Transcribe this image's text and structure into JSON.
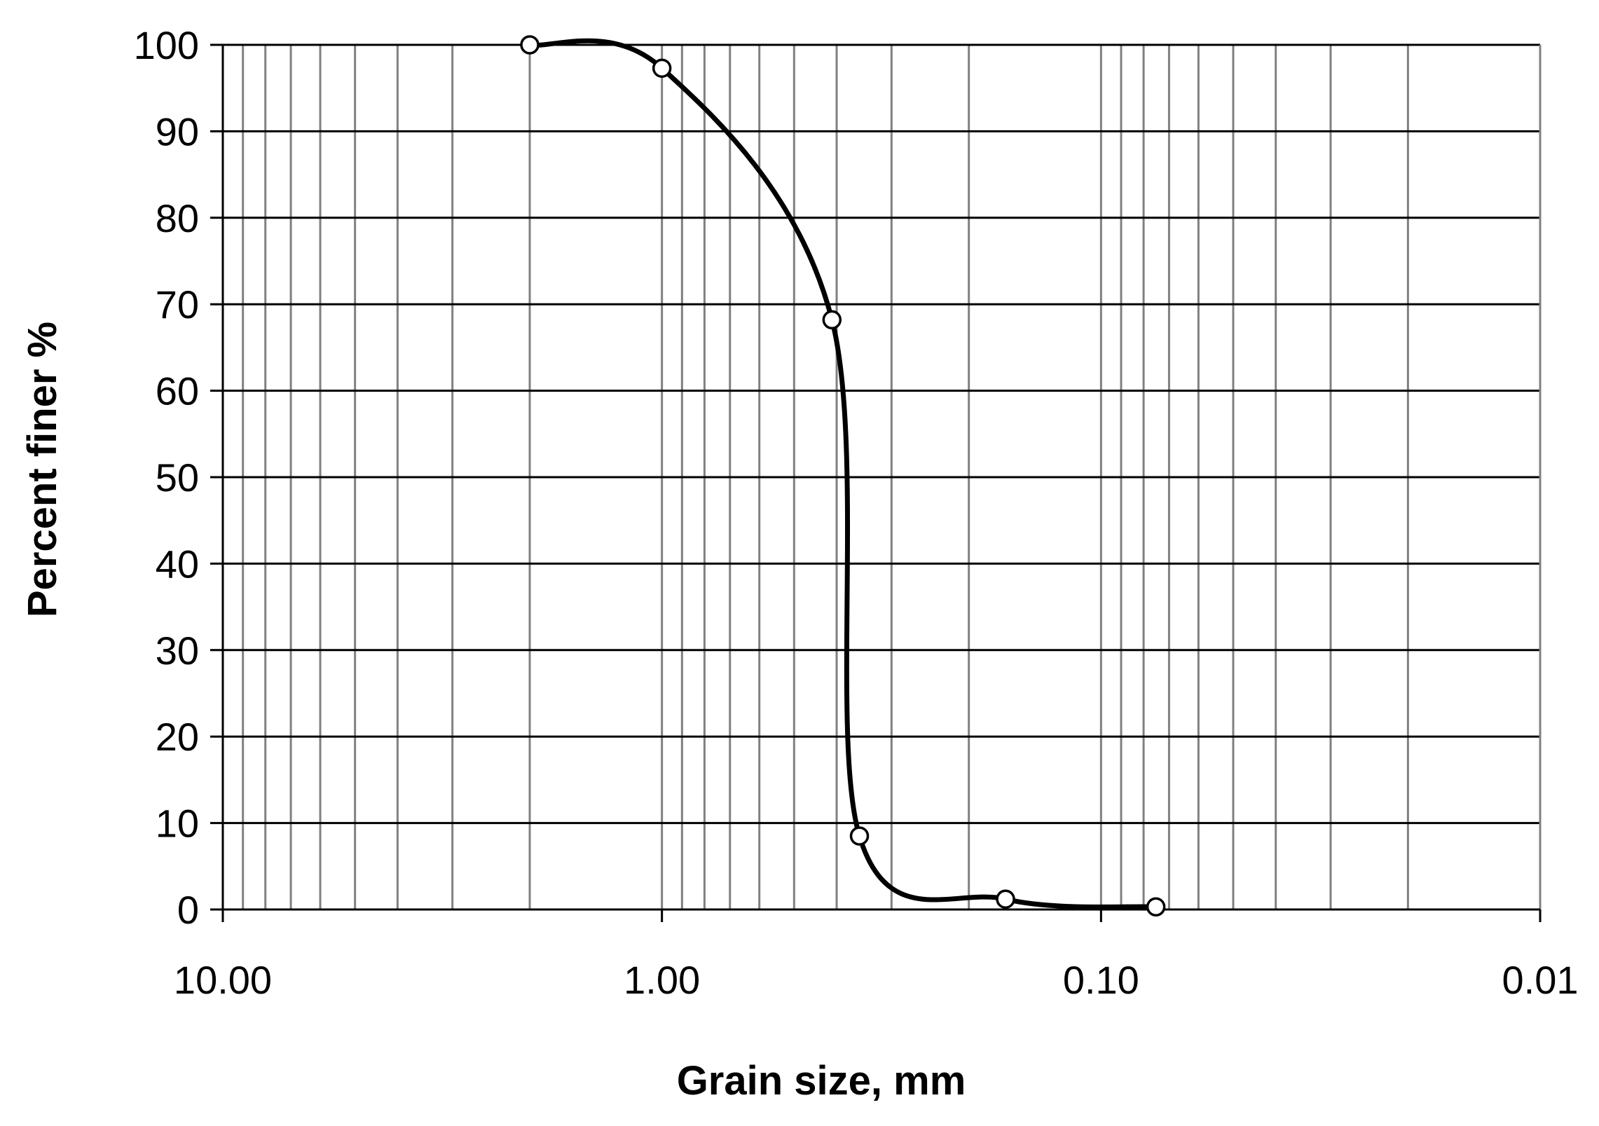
{
  "chart_data": {
    "type": "line",
    "xlabel": "Grain size, mm",
    "ylabel": "Percent finer %",
    "x_scale": "log",
    "x_reversed": true,
    "xlim": [
      10,
      0.01
    ],
    "ylim": [
      0,
      100
    ],
    "x_tick_labels": [
      "10.00",
      "1.00",
      "0.10",
      "0.01"
    ],
    "y_tick_labels": [
      "0",
      "10",
      "20",
      "30",
      "40",
      "50",
      "60",
      "70",
      "80",
      "90",
      "100"
    ],
    "grid": true,
    "series": [
      {
        "x": [
          2.0,
          1.0,
          0.41,
          0.355,
          0.165,
          0.075
        ],
        "y": [
          100,
          97.3,
          68.2,
          8.5,
          1.2,
          0.3
        ],
        "marker": "circle",
        "smooth": true
      }
    ],
    "colors": {
      "line": "#000000",
      "grid": "#808080",
      "axis": "#000000",
      "marker_fill": "#ffffff"
    }
  }
}
